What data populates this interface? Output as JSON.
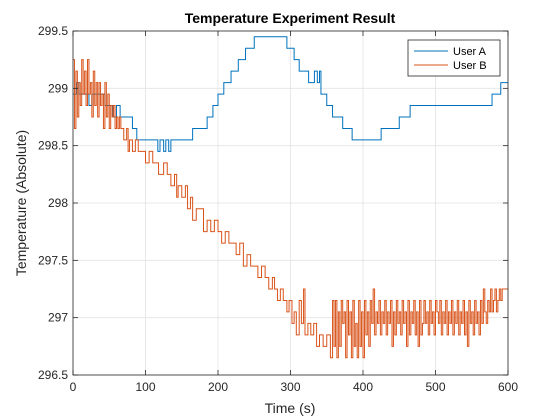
{
  "chart_data": {
    "type": "line",
    "title": "Temperature Experiment Result",
    "xlabel": "Time (s)",
    "ylabel": "Temperature (Absolute)",
    "xlim": [
      0,
      600
    ],
    "ylim": [
      296.5,
      299.5
    ],
    "xticks": [
      0,
      100,
      200,
      300,
      400,
      500,
      600
    ],
    "yticks": [
      296.5,
      297,
      297.5,
      298,
      298.5,
      299,
      299.5
    ],
    "xtick_labels": [
      "0",
      "100",
      "200",
      "300",
      "400",
      "500",
      "600"
    ],
    "ytick_labels": [
      "296.5",
      "297",
      "297.5",
      "298",
      "298.5",
      "299",
      "299.5"
    ],
    "grid": true,
    "legend_position": "top-right",
    "step": true,
    "series": [
      {
        "name": "User A",
        "color": "#0072BD",
        "points": [
          [
            0,
            298.95
          ],
          [
            5,
            299.05
          ],
          [
            8,
            298.95
          ],
          [
            20,
            298.95
          ],
          [
            22,
            298.85
          ],
          [
            26,
            298.95
          ],
          [
            40,
            298.95
          ],
          [
            44,
            298.85
          ],
          [
            55,
            298.75
          ],
          [
            60,
            298.85
          ],
          [
            65,
            298.75
          ],
          [
            80,
            298.75
          ],
          [
            82,
            298.65
          ],
          [
            88,
            298.55
          ],
          [
            115,
            298.55
          ],
          [
            117,
            298.45
          ],
          [
            120,
            298.55
          ],
          [
            125,
            298.45
          ],
          [
            128,
            298.55
          ],
          [
            132,
            298.45
          ],
          [
            135,
            298.55
          ],
          [
            160,
            298.55
          ],
          [
            165,
            298.65
          ],
          [
            180,
            298.65
          ],
          [
            185,
            298.75
          ],
          [
            193,
            298.85
          ],
          [
            200,
            298.95
          ],
          [
            208,
            299.05
          ],
          [
            218,
            299.15
          ],
          [
            228,
            299.25
          ],
          [
            238,
            299.35
          ],
          [
            250,
            299.45
          ],
          [
            290,
            299.45
          ],
          [
            295,
            299.35
          ],
          [
            305,
            299.25
          ],
          [
            312,
            299.15
          ],
          [
            325,
            299.05
          ],
          [
            333,
            299.15
          ],
          [
            337,
            299.05
          ],
          [
            340,
            299.15
          ],
          [
            342,
            298.95
          ],
          [
            350,
            298.85
          ],
          [
            358,
            298.75
          ],
          [
            372,
            298.65
          ],
          [
            380,
            298.65
          ],
          [
            385,
            298.55
          ],
          [
            418,
            298.55
          ],
          [
            425,
            298.65
          ],
          [
            445,
            298.65
          ],
          [
            450,
            298.75
          ],
          [
            465,
            298.85
          ],
          [
            480,
            298.85
          ],
          [
            490,
            298.85
          ],
          [
            495,
            298.85
          ],
          [
            505,
            298.85
          ],
          [
            510,
            298.85
          ],
          [
            540,
            298.85
          ],
          [
            550,
            298.85
          ],
          [
            573,
            298.85
          ],
          [
            578,
            298.95
          ],
          [
            590,
            299.05
          ],
          [
            600,
            299.05
          ]
        ]
      },
      {
        "name": "User B",
        "color": "#D95319",
        "points": [
          [
            0,
            299.25
          ],
          [
            2,
            298.65
          ],
          [
            4,
            299.15
          ],
          [
            6,
            298.75
          ],
          [
            8,
            299.05
          ],
          [
            10,
            298.85
          ],
          [
            12,
            299.25
          ],
          [
            14,
            298.95
          ],
          [
            16,
            299.15
          ],
          [
            18,
            298.85
          ],
          [
            20,
            299.25
          ],
          [
            22,
            298.95
          ],
          [
            24,
            299.05
          ],
          [
            26,
            298.75
          ],
          [
            28,
            299.15
          ],
          [
            30,
            298.85
          ],
          [
            32,
            299.05
          ],
          [
            34,
            298.75
          ],
          [
            36,
            299.05
          ],
          [
            38,
            298.85
          ],
          [
            40,
            298.95
          ],
          [
            42,
            298.65
          ],
          [
            44,
            299.05
          ],
          [
            46,
            298.75
          ],
          [
            48,
            298.95
          ],
          [
            50,
            298.65
          ],
          [
            52,
            298.85
          ],
          [
            54,
            298.75
          ],
          [
            56,
            298.85
          ],
          [
            58,
            298.65
          ],
          [
            60,
            298.75
          ],
          [
            62,
            298.65
          ],
          [
            64,
            298.75
          ],
          [
            66,
            298.65
          ],
          [
            70,
            298.55
          ],
          [
            74,
            298.65
          ],
          [
            76,
            298.45
          ],
          [
            78,
            298.55
          ],
          [
            82,
            298.45
          ],
          [
            86,
            298.55
          ],
          [
            90,
            298.45
          ],
          [
            95,
            298.45
          ],
          [
            100,
            298.35
          ],
          [
            105,
            298.45
          ],
          [
            110,
            298.35
          ],
          [
            115,
            298.35
          ],
          [
            118,
            298.25
          ],
          [
            125,
            298.35
          ],
          [
            130,
            298.25
          ],
          [
            135,
            298.15
          ],
          [
            140,
            298.25
          ],
          [
            143,
            298.05
          ],
          [
            145,
            298.15
          ],
          [
            150,
            298.05
          ],
          [
            155,
            298.15
          ],
          [
            158,
            297.95
          ],
          [
            162,
            298.05
          ],
          [
            165,
            297.85
          ],
          [
            170,
            297.95
          ],
          [
            175,
            297.95
          ],
          [
            180,
            297.75
          ],
          [
            185,
            297.85
          ],
          [
            190,
            297.75
          ],
          [
            195,
            297.85
          ],
          [
            200,
            297.75
          ],
          [
            205,
            297.65
          ],
          [
            210,
            297.75
          ],
          [
            215,
            297.65
          ],
          [
            220,
            297.65
          ],
          [
            225,
            297.55
          ],
          [
            230,
            297.65
          ],
          [
            235,
            297.45
          ],
          [
            240,
            297.55
          ],
          [
            245,
            297.45
          ],
          [
            250,
            297.45
          ],
          [
            255,
            297.35
          ],
          [
            260,
            297.45
          ],
          [
            265,
            297.35
          ],
          [
            270,
            297.25
          ],
          [
            275,
            297.35
          ],
          [
            278,
            297.25
          ],
          [
            282,
            297.15
          ],
          [
            286,
            297.25
          ],
          [
            290,
            297.15
          ],
          [
            295,
            297.05
          ],
          [
            298,
            297.15
          ],
          [
            302,
            296.95
          ],
          [
            305,
            297.05
          ],
          [
            308,
            296.85
          ],
          [
            312,
            297.15
          ],
          [
            315,
            296.95
          ],
          [
            318,
            297.25
          ],
          [
            320,
            296.85
          ],
          [
            324,
            296.95
          ],
          [
            328,
            296.85
          ],
          [
            332,
            296.95
          ],
          [
            336,
            296.75
          ],
          [
            340,
            296.85
          ],
          [
            345,
            296.75
          ],
          [
            350,
            296.85
          ],
          [
            355,
            296.65
          ],
          [
            358,
            297.15
          ],
          [
            360,
            296.75
          ],
          [
            362,
            297.15
          ],
          [
            364,
            296.65
          ],
          [
            366,
            297.05
          ],
          [
            368,
            296.75
          ],
          [
            370,
            297.15
          ],
          [
            372,
            296.95
          ],
          [
            374,
            297.05
          ],
          [
            376,
            296.65
          ],
          [
            378,
            297.15
          ],
          [
            380,
            296.85
          ],
          [
            382,
            297.05
          ],
          [
            384,
            296.65
          ],
          [
            386,
            297.15
          ],
          [
            388,
            296.75
          ],
          [
            390,
            296.95
          ],
          [
            392,
            296.65
          ],
          [
            394,
            297.15
          ],
          [
            396,
            296.75
          ],
          [
            398,
            297.05
          ],
          [
            400,
            296.65
          ],
          [
            402,
            297.15
          ],
          [
            404,
            296.85
          ],
          [
            406,
            297.05
          ],
          [
            408,
            296.75
          ],
          [
            410,
            297.15
          ],
          [
            412,
            296.95
          ],
          [
            414,
            297.25
          ],
          [
            416,
            296.85
          ],
          [
            418,
            297.05
          ],
          [
            420,
            296.95
          ],
          [
            422,
            297.15
          ],
          [
            424,
            296.85
          ],
          [
            426,
            297.05
          ],
          [
            428,
            296.95
          ],
          [
            430,
            297.15
          ],
          [
            432,
            296.85
          ],
          [
            434,
            297.05
          ],
          [
            436,
            296.95
          ],
          [
            438,
            297.15
          ],
          [
            440,
            296.75
          ],
          [
            442,
            297.05
          ],
          [
            444,
            296.85
          ],
          [
            446,
            297.15
          ],
          [
            448,
            296.95
          ],
          [
            450,
            297.05
          ],
          [
            452,
            296.85
          ],
          [
            454,
            297.15
          ],
          [
            456,
            296.95
          ],
          [
            458,
            297.05
          ],
          [
            460,
            296.75
          ],
          [
            462,
            297.15
          ],
          [
            464,
            296.85
          ],
          [
            466,
            297.05
          ],
          [
            468,
            296.95
          ],
          [
            470,
            297.15
          ],
          [
            472,
            296.85
          ],
          [
            474,
            297.05
          ],
          [
            476,
            296.75
          ],
          [
            478,
            297.15
          ],
          [
            480,
            296.85
          ],
          [
            482,
            296.95
          ],
          [
            484,
            297.15
          ],
          [
            486,
            296.95
          ],
          [
            488,
            297.05
          ],
          [
            490,
            296.85
          ],
          [
            492,
            297.15
          ],
          [
            494,
            296.95
          ],
          [
            496,
            297.05
          ],
          [
            498,
            296.85
          ],
          [
            500,
            297.15
          ],
          [
            502,
            297.05
          ],
          [
            504,
            296.95
          ],
          [
            506,
            297.15
          ],
          [
            508,
            296.85
          ],
          [
            510,
            297.05
          ],
          [
            512,
            296.95
          ],
          [
            514,
            297.15
          ],
          [
            516,
            296.85
          ],
          [
            518,
            297.05
          ],
          [
            520,
            296.95
          ],
          [
            522,
            297.15
          ],
          [
            524,
            296.85
          ],
          [
            526,
            297.05
          ],
          [
            528,
            296.95
          ],
          [
            530,
            297.15
          ],
          [
            532,
            296.85
          ],
          [
            534,
            297.05
          ],
          [
            536,
            296.95
          ],
          [
            538,
            297.15
          ],
          [
            540,
            296.85
          ],
          [
            542,
            297.05
          ],
          [
            544,
            296.75
          ],
          [
            546,
            297.15
          ],
          [
            548,
            296.95
          ],
          [
            550,
            297.05
          ],
          [
            552,
            296.85
          ],
          [
            554,
            297.15
          ],
          [
            556,
            296.95
          ],
          [
            558,
            297.05
          ],
          [
            560,
            296.85
          ],
          [
            562,
            297.15
          ],
          [
            564,
            296.95
          ],
          [
            566,
            297.25
          ],
          [
            568,
            297.05
          ],
          [
            570,
            296.95
          ],
          [
            572,
            297.15
          ],
          [
            574,
            297.05
          ],
          [
            576,
            297.25
          ],
          [
            578,
            297.05
          ],
          [
            580,
            297.15
          ],
          [
            582,
            297.25
          ],
          [
            584,
            297.05
          ],
          [
            586,
            297.15
          ],
          [
            588,
            297.25
          ],
          [
            590,
            297.15
          ],
          [
            592,
            297.25
          ],
          [
            595,
            297.25
          ],
          [
            600,
            297.25
          ]
        ]
      }
    ]
  }
}
